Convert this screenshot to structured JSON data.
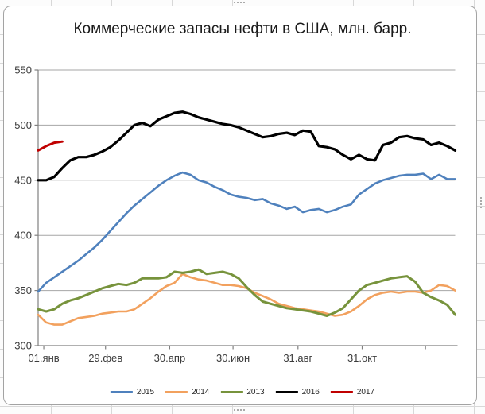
{
  "chart_data": {
    "type": "line",
    "title": "Коммерческие запасы нефти в США, млн. барр.",
    "xlabel": "",
    "ylabel": "",
    "ylim": [
      300,
      550
    ],
    "yticks": [
      300,
      350,
      400,
      450,
      500,
      550
    ],
    "grid": true,
    "legend_position": "bottom",
    "x_axis": {
      "unit": "weeks",
      "span_weeks": 52,
      "ticks": [
        {
          "label": "01.янв",
          "week": 0.7
        },
        {
          "label": "29.фев",
          "week": 8.4
        },
        {
          "label": "30.апр",
          "week": 16.4
        },
        {
          "label": "30.июн",
          "week": 24.3
        },
        {
          "label": "31.авг",
          "week": 32.4
        },
        {
          "label": "31.окт",
          "week": 40.4
        },
        {
          "label": "",
          "week": 48.3
        }
      ]
    },
    "series": [
      {
        "name": "2015",
        "color": "#4F81BD",
        "values": [
          349,
          357,
          362,
          367,
          372,
          377,
          383,
          389,
          396,
          404,
          412,
          420,
          427,
          433,
          439,
          445,
          450,
          454,
          457,
          455,
          450,
          448,
          444,
          441,
          437,
          435,
          434,
          432,
          433,
          429,
          427,
          424,
          426,
          421,
          423,
          424,
          421,
          423,
          426,
          428,
          437,
          442,
          447,
          450,
          452,
          454,
          455,
          455,
          456,
          451,
          455,
          451,
          451
        ]
      },
      {
        "name": "2014",
        "color": "#F2A15E",
        "values": [
          328,
          321,
          319,
          319,
          322,
          325,
          326,
          327,
          329,
          330,
          331,
          331,
          333,
          338,
          343,
          349,
          354,
          357,
          365,
          362,
          360,
          359,
          357,
          355,
          355,
          354,
          352,
          348,
          345,
          342,
          338,
          336,
          334,
          333,
          332,
          331,
          329,
          327,
          328,
          331,
          336,
          342,
          346,
          348,
          349,
          348,
          349,
          349,
          348,
          350,
          355,
          354,
          350
        ]
      },
      {
        "name": "2013",
        "color": "#77933C",
        "values": [
          333,
          331,
          333,
          338,
          341,
          343,
          346,
          349,
          352,
          354,
          356,
          355,
          357,
          361,
          361,
          361,
          362,
          367,
          366,
          367,
          369,
          365,
          366,
          367,
          365,
          361,
          353,
          346,
          340,
          338,
          336,
          334,
          333,
          332,
          331,
          329,
          327,
          330,
          334,
          342,
          350,
          355,
          357,
          359,
          361,
          362,
          363,
          358,
          348,
          344,
          341,
          337,
          328
        ]
      },
      {
        "name": "2016",
        "color": "#000000",
        "values": [
          450,
          450,
          453,
          461,
          468,
          471,
          471,
          473,
          476,
          480,
          486,
          493,
          500,
          502,
          499,
          505,
          508,
          511,
          512,
          510,
          507,
          505,
          503,
          501,
          500,
          498,
          495,
          492,
          489,
          490,
          492,
          493,
          491,
          495,
          494,
          481,
          480,
          478,
          473,
          469,
          473,
          469,
          468,
          482,
          484,
          489,
          490,
          488,
          487,
          482,
          484,
          481,
          477
        ]
      },
      {
        "name": "2017",
        "color": "#C00000",
        "values": [
          477,
          481,
          484,
          485
        ]
      }
    ]
  }
}
